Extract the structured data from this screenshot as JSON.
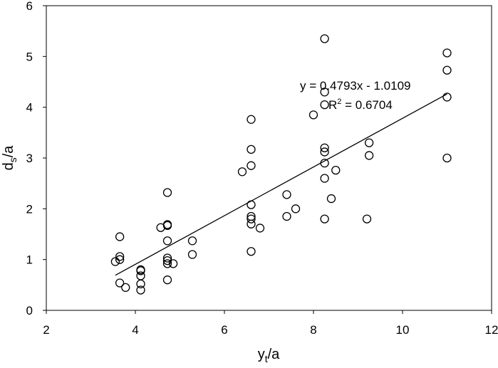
{
  "chart_data": {
    "type": "scatter",
    "xlabel": "y",
    "xlabel_sub": "t",
    "xlabel_suffix": "/a",
    "ylabel": "d",
    "ylabel_sub": "s",
    "ylabel_suffix": "/a",
    "xlim": [
      2,
      12
    ],
    "ylim": [
      0,
      6
    ],
    "x_ticks": [
      2,
      4,
      6,
      8,
      10,
      12
    ],
    "y_ticks": [
      0,
      1,
      2,
      3,
      4,
      5,
      6
    ],
    "grid": false,
    "marker": "open-circle",
    "points": [
      {
        "x": 3.55,
        "y": 0.96
      },
      {
        "x": 3.65,
        "y": 1.06
      },
      {
        "x": 3.65,
        "y": 1.0
      },
      {
        "x": 3.65,
        "y": 1.45
      },
      {
        "x": 3.65,
        "y": 0.54
      },
      {
        "x": 3.78,
        "y": 0.45
      },
      {
        "x": 4.12,
        "y": 0.8
      },
      {
        "x": 4.12,
        "y": 0.78
      },
      {
        "x": 4.12,
        "y": 0.68
      },
      {
        "x": 4.12,
        "y": 0.52
      },
      {
        "x": 4.12,
        "y": 0.4
      },
      {
        "x": 4.57,
        "y": 1.63
      },
      {
        "x": 4.72,
        "y": 1.67
      },
      {
        "x": 4.72,
        "y": 1.69
      },
      {
        "x": 4.72,
        "y": 2.32
      },
      {
        "x": 4.72,
        "y": 1.37
      },
      {
        "x": 4.72,
        "y": 1.03
      },
      {
        "x": 4.72,
        "y": 0.98
      },
      {
        "x": 4.72,
        "y": 0.92
      },
      {
        "x": 4.72,
        "y": 0.6
      },
      {
        "x": 4.85,
        "y": 0.92
      },
      {
        "x": 5.28,
        "y": 1.37
      },
      {
        "x": 5.28,
        "y": 1.1
      },
      {
        "x": 6.4,
        "y": 2.73
      },
      {
        "x": 6.6,
        "y": 3.76
      },
      {
        "x": 6.6,
        "y": 3.17
      },
      {
        "x": 6.6,
        "y": 2.85
      },
      {
        "x": 6.6,
        "y": 2.08
      },
      {
        "x": 6.6,
        "y": 1.85
      },
      {
        "x": 6.6,
        "y": 1.8
      },
      {
        "x": 6.6,
        "y": 1.7
      },
      {
        "x": 6.6,
        "y": 1.16
      },
      {
        "x": 6.8,
        "y": 1.62
      },
      {
        "x": 7.4,
        "y": 2.28
      },
      {
        "x": 7.4,
        "y": 1.85
      },
      {
        "x": 7.6,
        "y": 2.0
      },
      {
        "x": 8.0,
        "y": 3.85
      },
      {
        "x": 8.25,
        "y": 5.35
      },
      {
        "x": 8.25,
        "y": 4.3
      },
      {
        "x": 8.25,
        "y": 4.05
      },
      {
        "x": 8.25,
        "y": 3.2
      },
      {
        "x": 8.25,
        "y": 3.12
      },
      {
        "x": 8.25,
        "y": 2.9
      },
      {
        "x": 8.25,
        "y": 2.6
      },
      {
        "x": 8.25,
        "y": 1.8
      },
      {
        "x": 8.4,
        "y": 2.2
      },
      {
        "x": 8.5,
        "y": 2.76
      },
      {
        "x": 9.2,
        "y": 1.8
      },
      {
        "x": 9.25,
        "y": 3.3
      },
      {
        "x": 9.25,
        "y": 3.05
      },
      {
        "x": 11.0,
        "y": 5.07
      },
      {
        "x": 11.0,
        "y": 4.73
      },
      {
        "x": 11.0,
        "y": 4.2
      },
      {
        "x": 11.0,
        "y": 3.0
      }
    ],
    "trendline": {
      "type": "linear",
      "slope": 0.4793,
      "intercept": -1.0109,
      "x_range": [
        3.55,
        11.0
      ],
      "equation_label": "y = 0.4793x - 1.0109",
      "r2_prefix": "R",
      "r2_exponent": "2",
      "r2_suffix": " = 0.6704"
    }
  }
}
